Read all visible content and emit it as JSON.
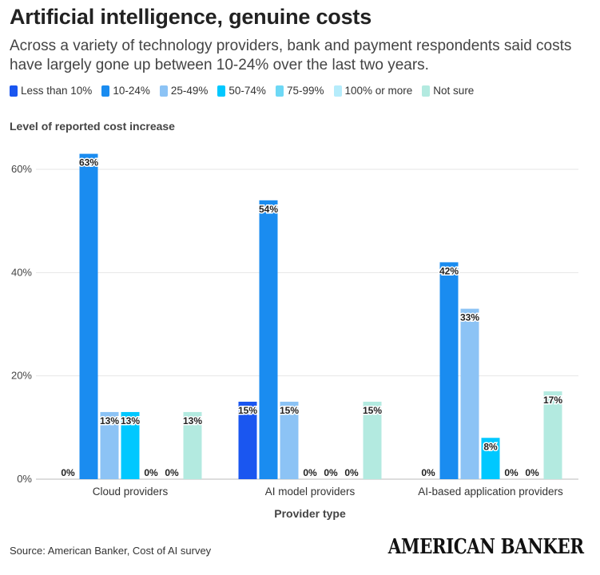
{
  "header": {
    "title": "Artificial intelligence, genuine costs",
    "subtitle": "Across a variety of technology providers, bank and payment respondents said costs have largely gone up between 10-24% over the last two years."
  },
  "footer": {
    "source": "Source: American Banker, Cost of AI survey",
    "logo": "AMERICAN BANKER"
  },
  "chart_data": {
    "type": "bar",
    "title": "Level of reported cost increase",
    "xlabel": "Provider type",
    "ylabel": "",
    "ylim": [
      0,
      60
    ],
    "yticks": [
      "0%",
      "20%",
      "40%",
      "60%"
    ],
    "ytick_values": [
      0,
      20,
      40,
      60
    ],
    "grid": true,
    "legend_position": "top",
    "categories": [
      "Cloud providers",
      "AI model providers",
      "AI-based application providers"
    ],
    "series": [
      {
        "name": "Less than 10%",
        "color": "#1a56f0",
        "values": [
          0,
          15,
          0
        ],
        "labels": [
          "0%",
          "15%",
          "0%"
        ]
      },
      {
        "name": "10-24%",
        "color": "#1a8cf0",
        "values": [
          63,
          54,
          42
        ],
        "labels": [
          "63%",
          "54%",
          "42%"
        ]
      },
      {
        "name": "25-49%",
        "color": "#8cc3f5",
        "values": [
          13,
          15,
          33
        ],
        "labels": [
          "13%",
          "15%",
          "33%"
        ]
      },
      {
        "name": "50-74%",
        "color": "#00c8ff",
        "values": [
          13,
          0,
          8
        ],
        "labels": [
          "13%",
          "0%",
          "8%"
        ]
      },
      {
        "name": "75-99%",
        "color": "#6dd8f5",
        "values": [
          0,
          0,
          0
        ],
        "labels": [
          "0%",
          "0%",
          "0%"
        ]
      },
      {
        "name": "100% or more",
        "color": "#b5ecfb",
        "values": [
          0,
          0,
          0
        ],
        "labels": [
          "0%",
          "0%",
          "0%"
        ]
      },
      {
        "name": "Not sure",
        "color": "#b3eae0",
        "values": [
          13,
          15,
          17
        ],
        "labels": [
          "13%",
          "15%",
          "17%"
        ]
      }
    ]
  }
}
